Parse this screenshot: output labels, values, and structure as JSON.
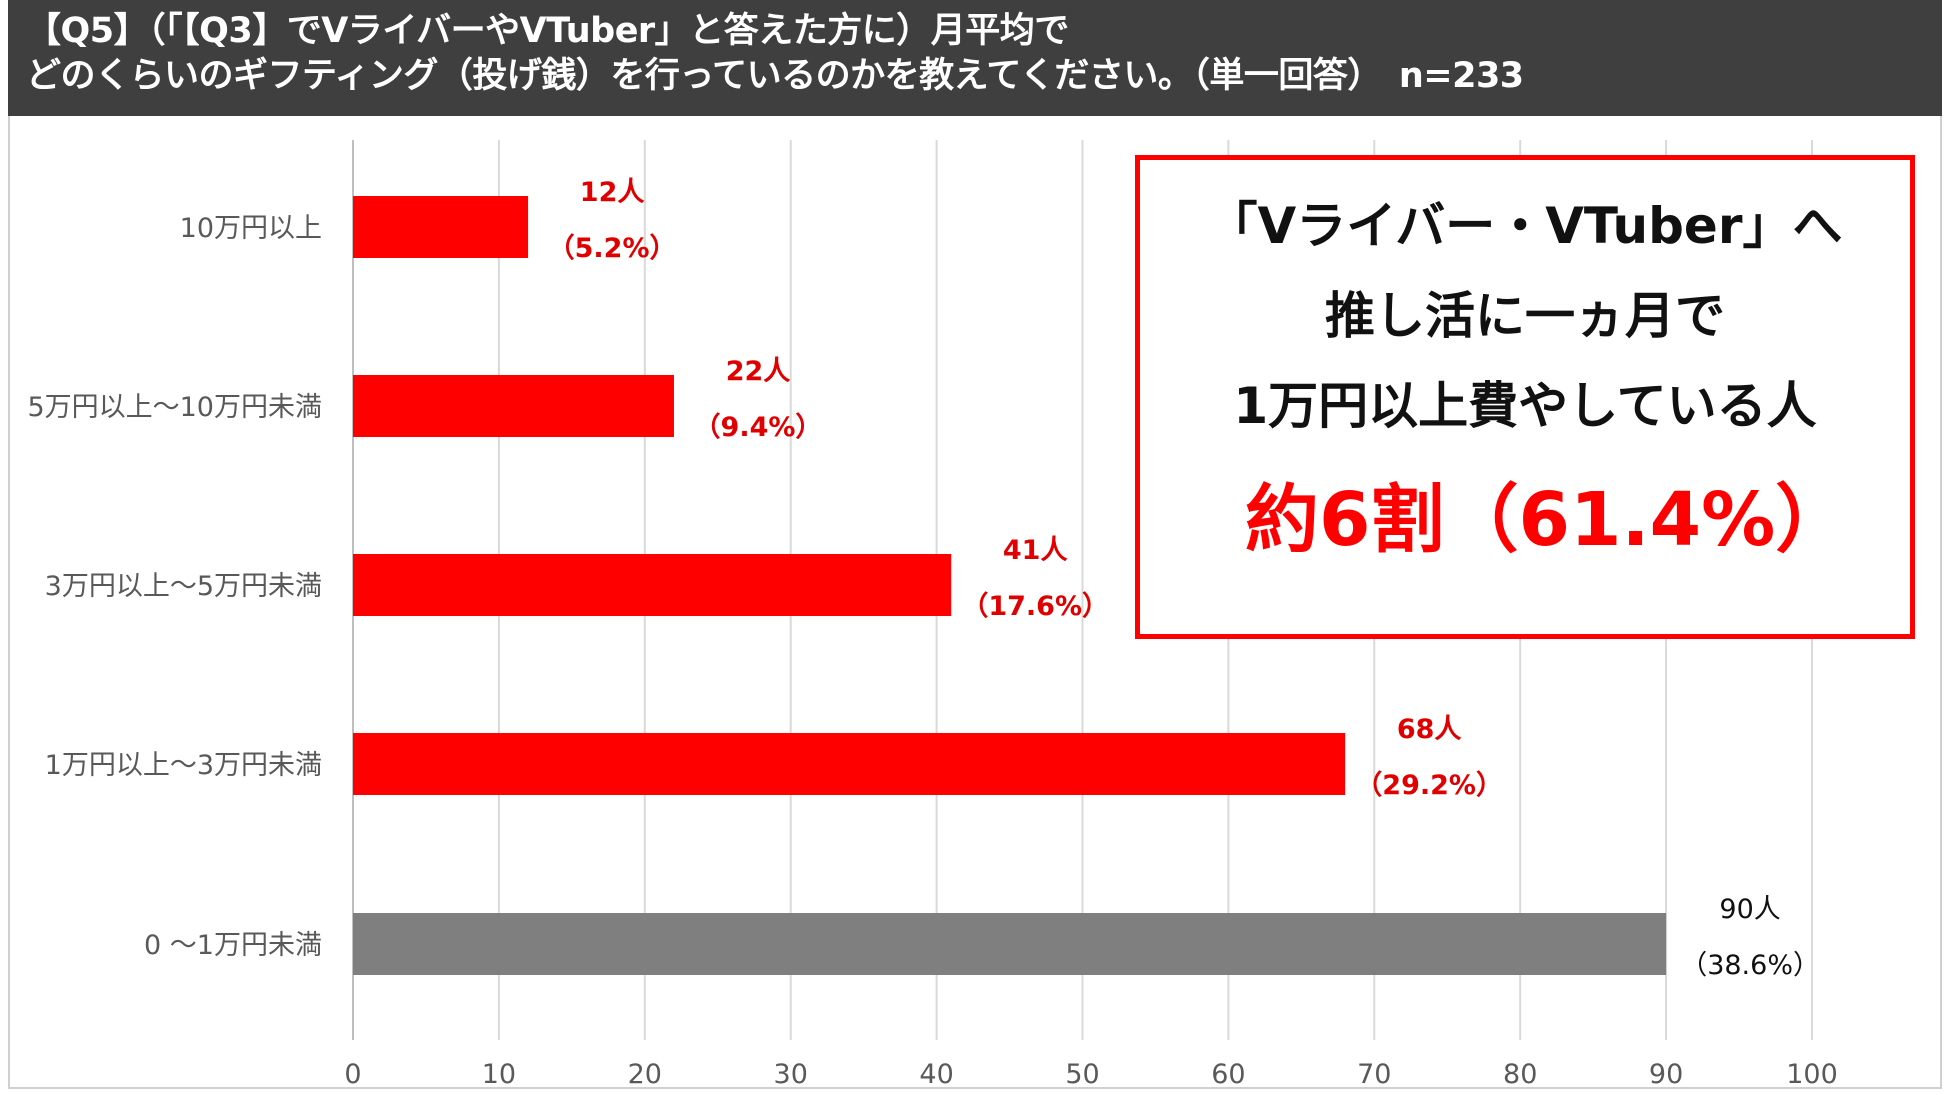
{
  "header": {
    "line1": "【Q5】（「【Q3】でVライバーやVTuber」と答えた方に）月平均で",
    "line2": "どのくらいのギフティング（投げ銭）を行っているのかを教えてください。（単一回答）　n=233"
  },
  "callout": {
    "line1": "「Vライバー・VTuber」へ",
    "line2": "推し活に一ヵ月で",
    "line3": "1万円以上費やしている人",
    "line4": "約6割（61.4%）"
  },
  "colors": {
    "highlight_bar": "#ff0000",
    "base_bar": "#7f7f7f",
    "highlight_label": "#e00000",
    "base_label": "#111111",
    "gridline": "#d9d9d9",
    "axis_text": "#595959",
    "header_bg": "#3f3f3f"
  },
  "chart_data": {
    "type": "bar",
    "orientation": "horizontal",
    "categories": [
      "10万円以上",
      "5万円以上～10万円未満",
      "3万円以上～5万円未満",
      "1万円以上～3万円未満",
      "0 ～1万円未満"
    ],
    "values": [
      12,
      22,
      41,
      68,
      90
    ],
    "count_labels": [
      "12人",
      "22人",
      "41人",
      "68人",
      "90人"
    ],
    "percent_labels": [
      "（5.2%）",
      "（9.4%）",
      "（17.6%）",
      "（29.2%）",
      "（38.6%）"
    ],
    "highlighted": [
      true,
      true,
      true,
      true,
      false
    ],
    "xlim": [
      0,
      100
    ],
    "xticks": [
      0,
      10,
      20,
      30,
      40,
      50,
      60,
      70,
      80,
      90,
      100
    ],
    "grid": true,
    "title": "",
    "xlabel": "",
    "ylabel": ""
  }
}
